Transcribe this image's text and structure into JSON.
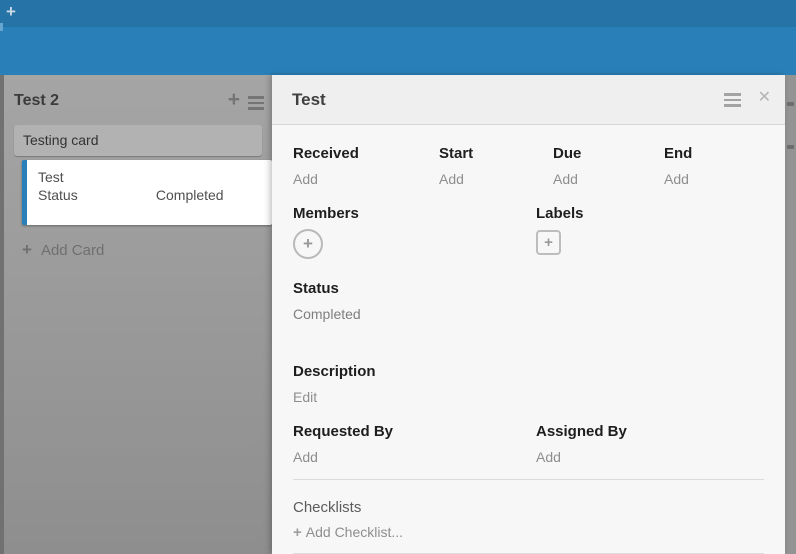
{
  "topbar": {
    "add_board_icon": "+"
  },
  "icons": {
    "plus": "+",
    "close": "✕"
  },
  "list": {
    "title": "Test 2",
    "composer_text": "Testing card",
    "card": {
      "title": "Test",
      "field_label": "Status",
      "field_value": "Completed"
    },
    "add_card_label": "Add Card"
  },
  "detail": {
    "title": "Test",
    "dates": [
      {
        "label": "Received",
        "action": "Add"
      },
      {
        "label": "Start",
        "action": "Add"
      },
      {
        "label": "Due",
        "action": "Add"
      },
      {
        "label": "End",
        "action": "Add"
      }
    ],
    "members": {
      "label": "Members"
    },
    "labels": {
      "label": "Labels"
    },
    "status": {
      "label": "Status",
      "value": "Completed"
    },
    "description": {
      "label": "Description",
      "action": "Edit"
    },
    "requested_by": {
      "label": "Requested By",
      "action": "Add"
    },
    "assigned_by": {
      "label": "Assigned By",
      "action": "Add"
    },
    "checklists": {
      "label": "Checklists",
      "action": "Add Checklist..."
    }
  },
  "colors": {
    "accent": "#2980b9",
    "topbar_dark": "#2573a7",
    "topbar_light": "#2980b9",
    "board_bg": "#949494",
    "list_bg": "#9e9e9e",
    "panel_bg": "#f7f7f7",
    "panel_header_bg": "#efefef",
    "card_accent_border": "#2980b9"
  }
}
